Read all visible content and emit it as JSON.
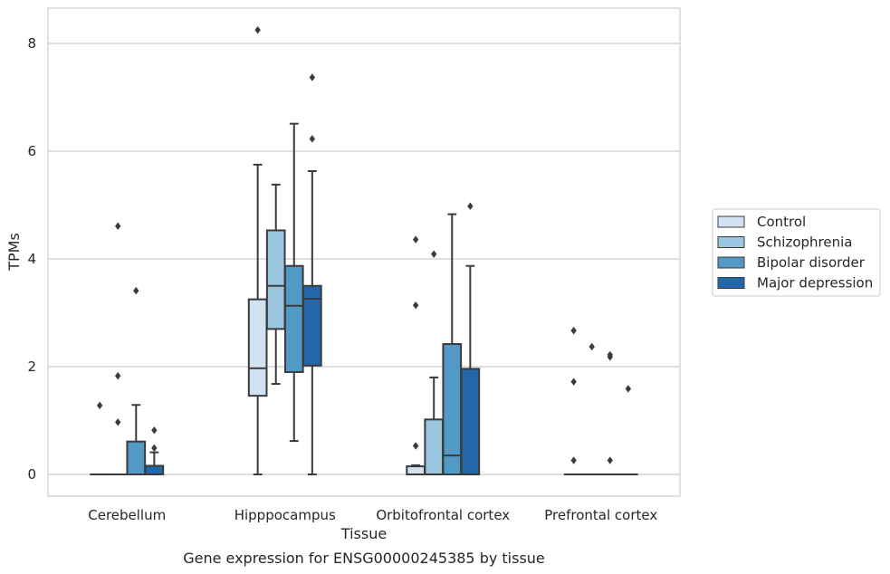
{
  "chart_data": {
    "type": "box",
    "xlabel": "Tissue",
    "ylabel": "TPMs",
    "caption": "Gene expression for ENSG00000245385 by tissue",
    "ylim": [
      -0.4,
      8.65
    ],
    "yticks": [
      0,
      2,
      4,
      6,
      8
    ],
    "grid": "horizontal",
    "legend_position": "right",
    "categories": [
      "Cerebellum",
      "Hipppocampus",
      "Orbitofrontal cortex",
      "Prefrontal cortex"
    ],
    "series": [
      {
        "name": "Control",
        "color": "#d1e2f2",
        "boxes": [
          {
            "q1": 0,
            "median": 0,
            "q3": 0,
            "whisker_low": 0,
            "whisker_high": 0,
            "outliers": [
              1.28
            ]
          },
          {
            "q1": 1.46,
            "median": 1.97,
            "q3": 3.25,
            "whisker_low": 0,
            "whisker_high": 5.75,
            "outliers": [
              8.25
            ]
          },
          {
            "q1": 0,
            "median": 0,
            "q3": 0.15,
            "whisker_low": 0,
            "whisker_high": 0.17,
            "outliers": [
              0.53,
              3.14,
              4.36
            ]
          },
          {
            "q1": 0,
            "median": 0,
            "q3": 0,
            "whisker_low": 0,
            "whisker_high": 0,
            "outliers": [
              0.26,
              1.72,
              2.67
            ]
          }
        ]
      },
      {
        "name": "Schizophrenia",
        "color": "#9ac7df",
        "boxes": [
          {
            "q1": 0,
            "median": 0,
            "q3": 0,
            "whisker_low": 0,
            "whisker_high": 0,
            "outliers": [
              0.97,
              1.83,
              4.61
            ]
          },
          {
            "q1": 2.7,
            "median": 3.5,
            "q3": 4.53,
            "whisker_low": 1.68,
            "whisker_high": 5.38,
            "outliers": []
          },
          {
            "q1": 0,
            "median": 0,
            "q3": 1.02,
            "whisker_low": 0,
            "whisker_high": 1.8,
            "outliers": [
              4.09
            ]
          },
          {
            "q1": 0,
            "median": 0,
            "q3": 0,
            "whisker_low": 0,
            "whisker_high": 0,
            "outliers": [
              2.37
            ]
          }
        ]
      },
      {
        "name": "Bipolar disorder",
        "color": "#5399c6",
        "boxes": [
          {
            "q1": 0,
            "median": 0,
            "q3": 0.61,
            "whisker_low": 0,
            "whisker_high": 1.29,
            "outliers": [
              3.41
            ]
          },
          {
            "q1": 1.9,
            "median": 3.13,
            "q3": 3.87,
            "whisker_low": 0.62,
            "whisker_high": 6.51,
            "outliers": []
          },
          {
            "q1": 0,
            "median": 0.35,
            "q3": 2.42,
            "whisker_low": 0,
            "whisker_high": 4.83,
            "outliers": []
          },
          {
            "q1": 0,
            "median": 0,
            "q3": 0,
            "whisker_low": 0,
            "whisker_high": 0,
            "outliers": [
              0.26,
              2.18,
              2.22
            ]
          }
        ]
      },
      {
        "name": "Major depression",
        "color": "#2467a8",
        "boxes": [
          {
            "q1": 0,
            "median": 0,
            "q3": 0.16,
            "whisker_low": 0,
            "whisker_high": 0.41,
            "outliers": [
              0.49,
              0.82
            ]
          },
          {
            "q1": 2.02,
            "median": 3.26,
            "q3": 3.5,
            "whisker_low": 0,
            "whisker_high": 5.63,
            "outliers": [
              6.23,
              7.37
            ]
          },
          {
            "q1": 0,
            "median": 0,
            "q3": 1.96,
            "whisker_low": 0,
            "whisker_high": 3.87,
            "outliers": [
              4.98
            ]
          },
          {
            "q1": 0,
            "median": 0,
            "q3": 0,
            "whisker_low": 0,
            "whisker_high": 0,
            "outliers": [
              1.59
            ]
          }
        ]
      }
    ]
  }
}
